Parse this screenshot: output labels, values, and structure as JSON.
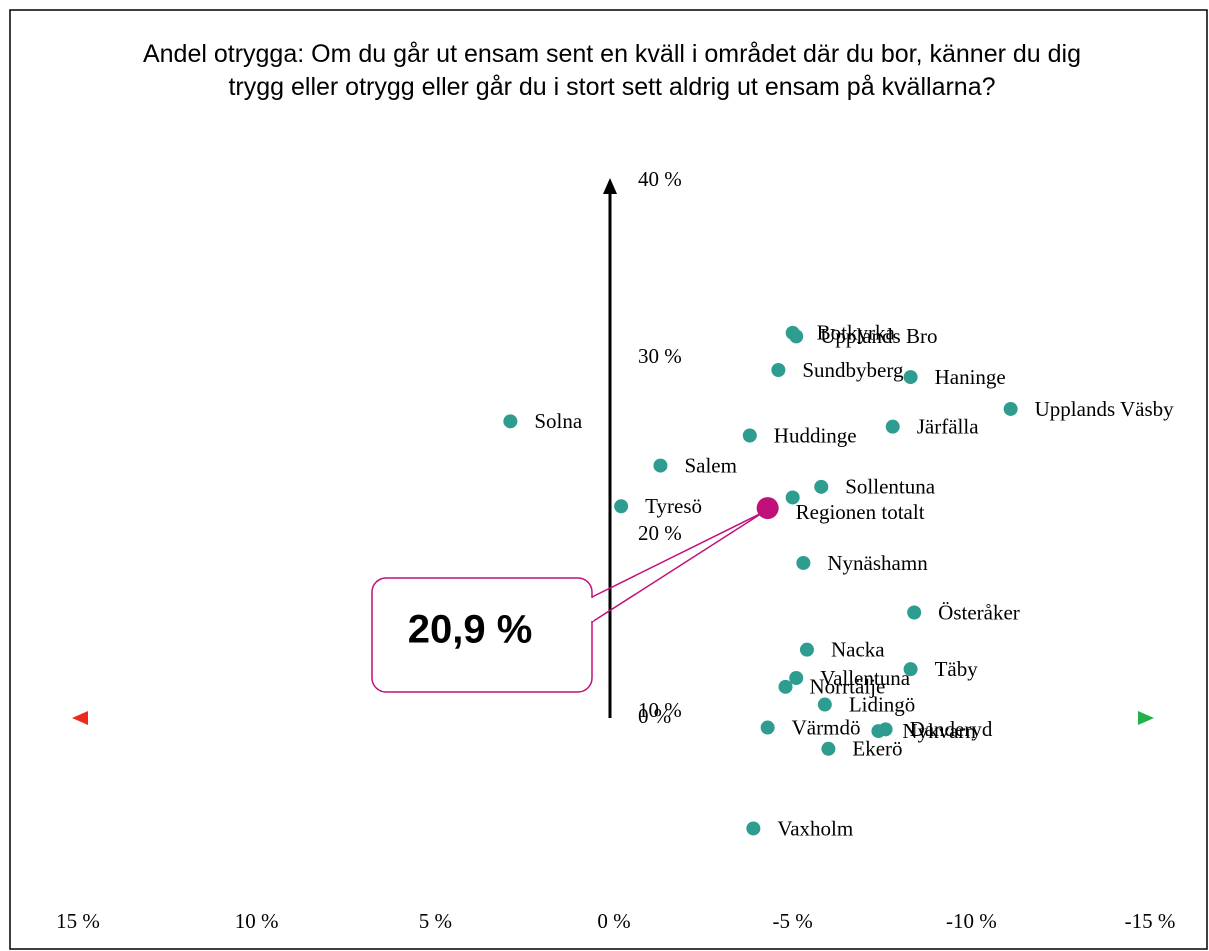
{
  "chart_data": {
    "type": "scatter",
    "title": "Andel otrygga: Om du går ut ensam sent en kväll i området där du bor, känner du dig trygg eller otrygg eller går du i stort sett aldrig ut ensam på kvällarna?",
    "labels": [
      "Botkyrka",
      "Upplands Bro",
      "Sundbyberg",
      "Haninge",
      "Upplands Väsby",
      "Solna",
      "Järfälla",
      "Huddinge",
      "Salem",
      "Sollentuna",
      "Tyresö",
      null,
      "Nynäshamn",
      "Österåker",
      "Nacka",
      "Täby",
      "Vallentuna",
      "Norrtälje",
      "Lidingö",
      "Värmdö",
      "Danderyd",
      "Nykvarn",
      "Ekerö",
      "Vaxholm"
    ],
    "x": [
      -5.0,
      -5.1,
      -4.6,
      -8.3,
      -11.1,
      2.9,
      -7.8,
      -3.8,
      -1.3,
      -5.8,
      -0.2,
      -5.0,
      -5.3,
      -8.4,
      -5.4,
      -8.3,
      -5.1,
      -4.8,
      -5.9,
      -4.3,
      -7.6,
      -7.4,
      -6.0,
      -3.9
    ],
    "y": [
      30.8,
      30.6,
      28.7,
      28.3,
      26.5,
      25.8,
      25.5,
      25.0,
      23.3,
      22.1,
      21.0,
      21.5,
      17.8,
      15.0,
      12.9,
      11.8,
      11.3,
      10.8,
      9.8,
      8.5,
      8.4,
      8.3,
      7.3,
      2.8
    ],
    "color": "#2e9c8f",
    "highlight": {
      "label": "Regionen totalt",
      "x": -4.3,
      "y": 20.9,
      "value_label": "20,9 %",
      "color": "#c0117a"
    },
    "xlim": [
      15,
      -15
    ],
    "xticks": [
      {
        "value": 15,
        "label": "15 %"
      },
      {
        "value": 10,
        "label": "10 %"
      },
      {
        "value": 5,
        "label": "5 %"
      },
      {
        "value": 0,
        "label": "0 %"
      },
      {
        "value": -5,
        "label": "-5 %"
      },
      {
        "value": -10,
        "label": "-10 %"
      },
      {
        "value": -15,
        "label": "-15 %"
      }
    ],
    "ylim": [
      0,
      40
    ],
    "yticks": [
      {
        "value": 0,
        "label": "0 %"
      },
      {
        "value": 10,
        "label": "10 %"
      },
      {
        "value": 20,
        "label": "20 %"
      },
      {
        "value": 30,
        "label": "30 %"
      },
      {
        "value": 40,
        "label": "40 %"
      }
    ]
  }
}
